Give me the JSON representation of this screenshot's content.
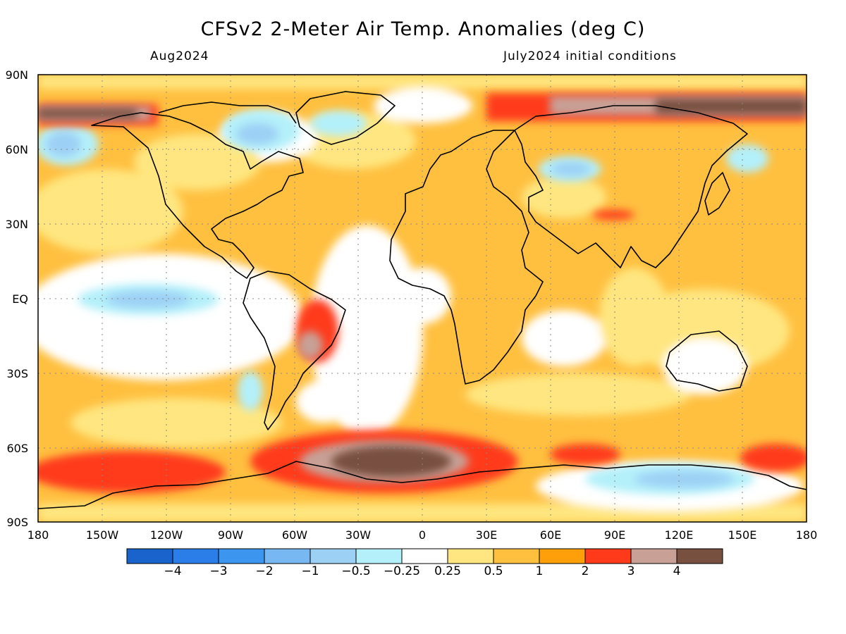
{
  "header": {
    "title": "CFSv2 2-Meter Air Temp. Anomalies (deg C)",
    "valid_month": "Aug2024",
    "initial_conditions": "July2024 initial conditions"
  },
  "map": {
    "lat_labels": [
      "90N",
      "60N",
      "30N",
      "EQ",
      "30S",
      "60S",
      "90S"
    ],
    "lon_labels": [
      "180",
      "150W",
      "120W",
      "90W",
      "60W",
      "30W",
      "0",
      "30E",
      "60E",
      "90E",
      "120E",
      "150E",
      "180"
    ]
  },
  "colorbar": {
    "colors": [
      "#1a63cc",
      "#2b7de8",
      "#3c96f0",
      "#78b8f2",
      "#9dd0f5",
      "#b4f0fa",
      "#ffffff",
      "#ffe680",
      "#ffc040",
      "#ffa00a",
      "#ff3a1a",
      "#c8a096",
      "#785040"
    ],
    "labels": [
      "−4",
      "−3",
      "−2",
      "−1",
      "−0.5",
      "−0.25",
      "0.25",
      "0.5",
      "1",
      "2",
      "3",
      "4"
    ]
  }
}
